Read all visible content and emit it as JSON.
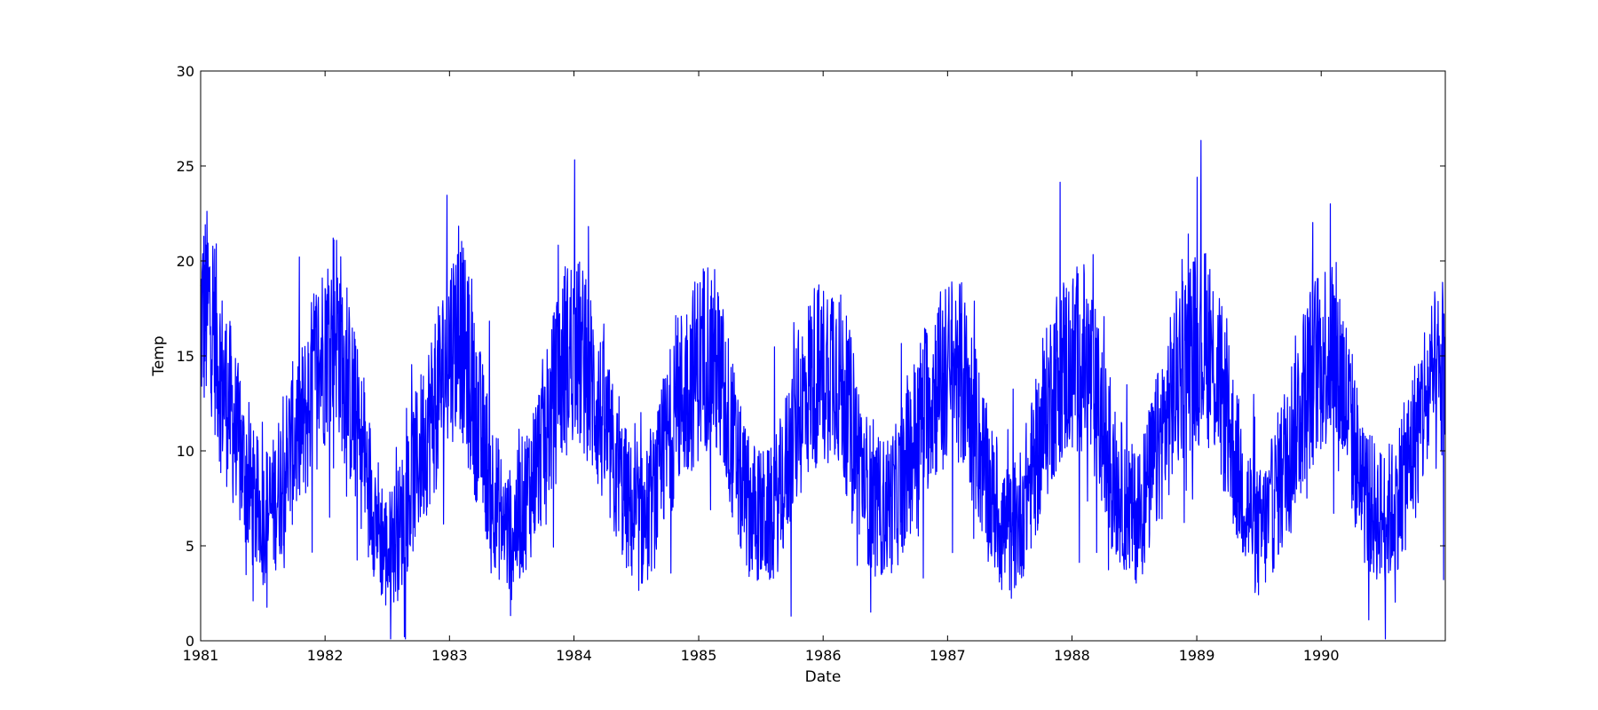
{
  "chart_data": {
    "type": "line",
    "title": "",
    "xlabel": "Date",
    "ylabel": "Temp",
    "xlim": [
      "1981-01-01",
      "1990-12-31"
    ],
    "ylim": [
      0,
      30
    ],
    "x_ticks": [
      "1981",
      "1982",
      "1983",
      "1984",
      "1985",
      "1986",
      "1987",
      "1988",
      "1989",
      "1990"
    ],
    "y_ticks": [
      "0",
      "5",
      "10",
      "15",
      "20",
      "25",
      "30"
    ],
    "grid": false,
    "legend": "none",
    "line_color": "#0000ff",
    "series": [
      {
        "x": [
          "1981-01",
          "1981-02",
          "1981-03",
          "1981-04",
          "1981-05",
          "1981-06",
          "1981-07",
          "1981-08",
          "1981-09",
          "1981-10",
          "1981-11",
          "1981-12",
          "1982-01",
          "1982-02",
          "1982-03",
          "1982-04",
          "1982-05",
          "1982-06",
          "1982-07",
          "1982-08",
          "1982-09",
          "1982-10",
          "1982-11",
          "1982-12",
          "1983-01",
          "1983-02",
          "1983-03",
          "1983-04",
          "1983-05",
          "1983-06",
          "1983-07",
          "1983-08",
          "1983-09",
          "1983-10",
          "1983-11",
          "1983-12",
          "1984-01",
          "1984-02",
          "1984-03",
          "1984-04",
          "1984-05",
          "1984-06",
          "1984-07",
          "1984-08",
          "1984-09",
          "1984-10",
          "1984-11",
          "1984-12",
          "1985-01",
          "1985-02",
          "1985-03",
          "1985-04",
          "1985-05",
          "1985-06",
          "1985-07",
          "1985-08",
          "1985-09",
          "1985-10",
          "1985-11",
          "1985-12",
          "1986-01",
          "1986-02",
          "1986-03",
          "1986-04",
          "1986-05",
          "1986-06",
          "1986-07",
          "1986-08",
          "1986-09",
          "1986-10",
          "1986-11",
          "1986-12",
          "1987-01",
          "1987-02",
          "1987-03",
          "1987-04",
          "1987-05",
          "1987-06",
          "1987-07",
          "1987-08",
          "1987-09",
          "1987-10",
          "1987-11",
          "1987-12",
          "1988-01",
          "1988-02",
          "1988-03",
          "1988-04",
          "1988-05",
          "1988-06",
          "1988-07",
          "1988-08",
          "1988-09",
          "1988-10",
          "1988-11",
          "1988-12",
          "1989-01",
          "1989-02",
          "1989-03",
          "1989-04",
          "1989-05",
          "1989-06",
          "1989-07",
          "1989-08",
          "1989-09",
          "1989-10",
          "1989-11",
          "1989-12",
          "1990-01",
          "1990-02",
          "1990-03",
          "1990-04",
          "1990-05",
          "1990-06",
          "1990-07",
          "1990-08",
          "1990-09",
          "1990-10",
          "1990-11",
          "1990-12"
        ],
        "values": [
          17.0,
          17.5,
          14.0,
          12.0,
          9.5,
          7.5,
          6.5,
          7.0,
          9.0,
          10.5,
          11.5,
          14.0,
          15.5,
          17.0,
          14.0,
          11.5,
          9.0,
          6.5,
          4.5,
          5.5,
          7.5,
          9.5,
          11.5,
          13.0,
          15.5,
          16.5,
          13.5,
          11.0,
          8.5,
          6.5,
          5.5,
          7.0,
          8.5,
          10.5,
          12.5,
          14.5,
          15.5,
          14.5,
          13.0,
          11.0,
          9.0,
          7.5,
          6.0,
          6.5,
          8.0,
          10.5,
          12.5,
          13.5,
          14.5,
          15.5,
          14.0,
          11.5,
          8.5,
          7.0,
          6.5,
          6.5,
          8.0,
          10.5,
          12.5,
          14.0,
          14.0,
          15.0,
          13.0,
          11.0,
          8.5,
          7.0,
          7.0,
          7.5,
          9.0,
          11.0,
          12.5,
          13.5,
          14.0,
          14.5,
          13.0,
          10.5,
          8.0,
          6.5,
          5.5,
          6.5,
          8.5,
          10.5,
          13.0,
          14.5,
          14.5,
          15.0,
          13.5,
          11.0,
          8.5,
          7.5,
          6.5,
          7.5,
          9.5,
          11.5,
          13.5,
          15.0,
          15.5,
          15.5,
          14.0,
          11.5,
          9.0,
          7.0,
          5.5,
          6.5,
          8.5,
          10.5,
          12.5,
          14.0,
          15.0,
          15.5,
          14.0,
          11.0,
          8.0,
          7.0,
          6.5,
          7.0,
          8.5,
          10.5,
          12.5,
          13.5
        ]
      }
    ]
  }
}
